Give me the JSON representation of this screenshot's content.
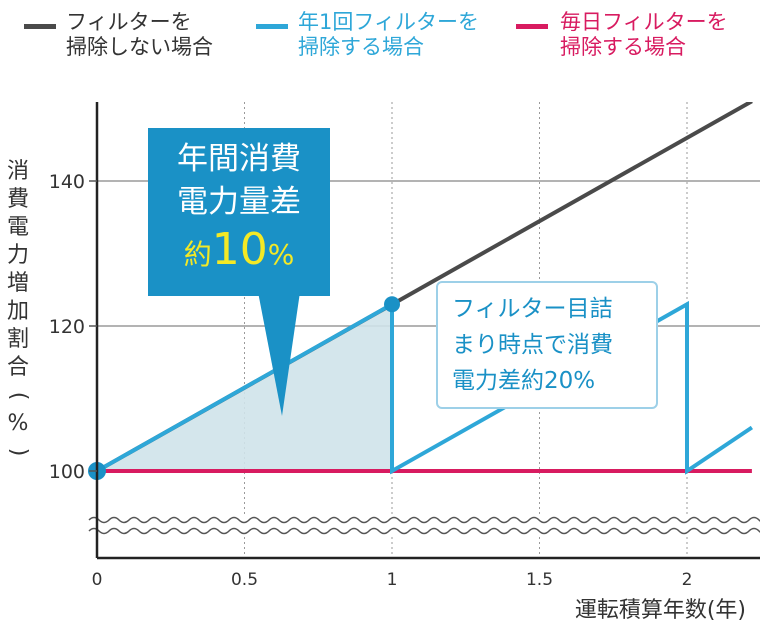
{
  "legend": [
    {
      "label": "フィルターを\n掃除しない場合",
      "color": "#4a4a4a",
      "text_color": "#333333"
    },
    {
      "label": "年1回フィルターを\n掃除する場合",
      "color": "#2ea7d8",
      "text_color": "#2ea7d8"
    },
    {
      "label": "毎日フィルターを\n掃除する場合",
      "color": "#d81b60",
      "text_color": "#d81b60"
    }
  ],
  "callout_annual": {
    "line1": "年間消費",
    "line2": "電力量差",
    "prefix": "約",
    "value": "10",
    "suffix": "%"
  },
  "callout_clog": {
    "text": "フィルター目詰\nまり時点で消費\n電力差約20%"
  },
  "chart_data": {
    "type": "line",
    "xlabel": "運転積算年数(年)",
    "ylabel": "消費電力増加割合 (%)",
    "xlim": [
      0,
      2.22
    ],
    "ylim": [
      88,
      150
    ],
    "x_ticks": [
      0,
      0.5,
      1,
      1.5,
      2
    ],
    "x_tick_labels": [
      "0",
      "0.5",
      "1",
      "1.5",
      "2"
    ],
    "y_ticks": [
      100,
      120,
      140
    ],
    "y_tick_labels": [
      "100",
      "120",
      "140"
    ],
    "axis_break": true,
    "grid": true,
    "series": [
      {
        "name": "フィルターを掃除しない場合",
        "color": "#4a4a4a",
        "points": [
          [
            0,
            100
          ],
          [
            2.22,
            151
          ]
        ]
      },
      {
        "name": "年1回フィルターを掃除する場合",
        "color": "#2ea7d8",
        "points": [
          [
            0,
            100
          ],
          [
            1,
            123
          ],
          [
            1,
            100
          ],
          [
            2,
            123
          ],
          [
            2,
            100
          ],
          [
            2.22,
            106
          ]
        ]
      },
      {
        "name": "毎日フィルターを掃除する場合",
        "color": "#d81b60",
        "points": [
          [
            0,
            100
          ],
          [
            2.22,
            100
          ]
        ]
      }
    ]
  }
}
